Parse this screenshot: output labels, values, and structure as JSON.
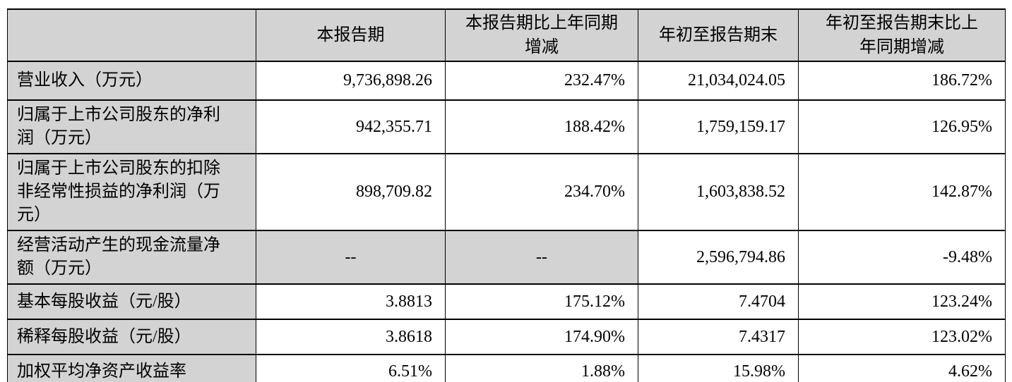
{
  "table": {
    "headers": [
      "",
      "本报告期",
      "本报告期比上年同期\n增减",
      "年初至报告期末",
      "年初至报告期末比上\n年同期增减"
    ],
    "rows": [
      {
        "label": "营业收入（万元）",
        "cells": [
          "9,736,898.26",
          "232.47%",
          "21,034,024.05",
          "186.72%"
        ]
      },
      {
        "label": "归属于上市公司股东的净利润（万元）",
        "cells": [
          "942,355.71",
          "188.42%",
          "1,759,159.17",
          "126.95%"
        ]
      },
      {
        "label": "归属于上市公司股东的扣除非经常性损益的净利润（万元）",
        "cells": [
          "898,709.82",
          "234.70%",
          "1,603,838.52",
          "142.87%"
        ]
      },
      {
        "label": "经营活动产生的现金流量净额（万元）",
        "cells": [
          "--",
          "--",
          "2,596,794.86",
          "-9.48%"
        ]
      },
      {
        "label": "基本每股收益（元/股）",
        "cells": [
          "3.8813",
          "175.12%",
          "7.4704",
          "123.24%"
        ]
      },
      {
        "label": "稀释每股收益（元/股）",
        "cells": [
          "3.8618",
          "174.90%",
          "7.4317",
          "123.02%"
        ]
      },
      {
        "label": "加权平均净资产收益率",
        "cells": [
          "6.51%",
          "1.88%",
          "15.98%",
          "4.62%"
        ]
      }
    ]
  },
  "colors": {
    "shading": "#d3d3d3",
    "border": "#000000",
    "background": "#ffffff",
    "text": "#000000"
  }
}
